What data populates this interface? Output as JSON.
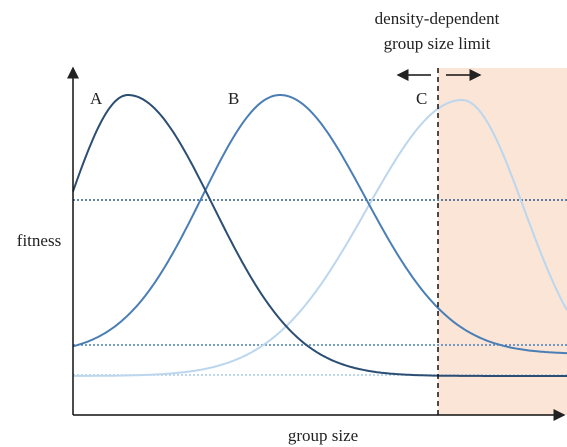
{
  "y_axis_label": "fitness",
  "x_axis_label": "group size",
  "curves": [
    {
      "label": "A"
    },
    {
      "label": "B"
    },
    {
      "label": "C"
    }
  ],
  "annotation": {
    "lines": [
      "density-dependent",
      "group size limit"
    ]
  }
}
